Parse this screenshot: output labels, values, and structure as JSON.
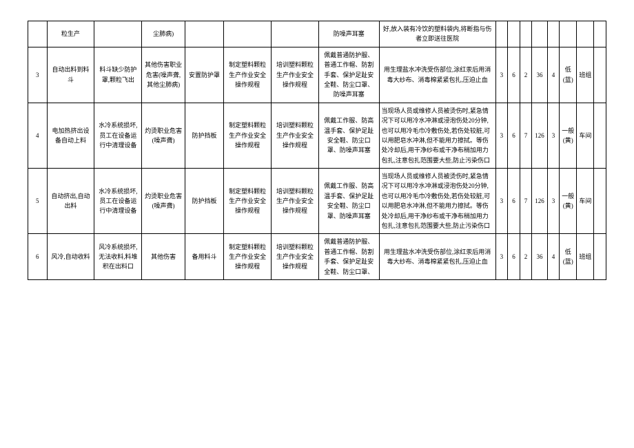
{
  "rows": [
    {
      "idx": "",
      "step": "粒生产",
      "risk": "",
      "hazard": "尘肺病)",
      "eng": "",
      "admin": "",
      "train": "",
      "ppe": "防噪声耳塞",
      "emerg": "好,放入装有冷饮的塑料袋内,将断指与伤者立即送往医院",
      "n1": "",
      "n2": "",
      "n3": "",
      "n4": "",
      "n5": "",
      "level": "",
      "mgr": "",
      "end": ""
    },
    {
      "idx": "3",
      "step": "自动出料到料斗",
      "risk": "料斗缺少防护罩,颗粒飞出",
      "hazard": "其他伤害职业危害(噪声聋,其他尘肺病)",
      "eng": "安置防护罩",
      "admin": "制定塑料颗粒生产作业安全操作规程",
      "train": "培训塑料颗粒生产作业安全操作规程",
      "ppe": "佩戴普通防护服、普通工作帽、防割手套、保护足趾安全鞋、防尘口罩、防噪声耳塞",
      "emerg": "用生理盐水冲洗受伤部位,涂红汞后用消毒大纱布、消毒棉紧紧包扎,压迫止血",
      "n1": "3",
      "n2": "6",
      "n3": "2",
      "n4": "36",
      "n5": "4",
      "level": "低(蓝)",
      "mgr": "班组",
      "end": ""
    },
    {
      "idx": "4",
      "step": "电加热挤出设备自动上料",
      "risk": "水冷系统损坏,员工在设备运行中清理设备",
      "hazard": "灼烫职业危害(噪声聋)",
      "eng": "防护挡板",
      "admin": "制定塑料颗粒生产作业安全操作规程",
      "train": "培训塑料颗粒生产作业安全操作规程",
      "ppe": "佩戴工作服、防高温手套、保护足趾安全鞋、防尘口罩、防噪声耳塞",
      "emerg": "当现场人员或维修人员被烫伤时,紧急情况下可以用冷水冲淋或浸泡伤处20分钟,也可以用冷毛巾冷敷伤处,若伤处较脏,可以用肥皂水冲淋,但不能用力擦拭。等伤处冷却后,用干净纱布或干净布稍加用力包扎,注意包扎范围要大些,防止污染伤口",
      "n1": "3",
      "n2": "6",
      "n3": "7",
      "n4": "126",
      "n5": "3",
      "level": "一般(黄)",
      "mgr": "车间",
      "end": ""
    },
    {
      "idx": "5",
      "step": "自动挤出,自动出料",
      "risk": "水冷系统损坏,员工在设备运行中清理设备",
      "hazard": "灼烫职业危害(噪声聋)",
      "eng": "防护挡板",
      "admin": "制定塑料颗粒生产作业安全操作规程",
      "train": "培训塑料颗粒生产作业安全操作规程",
      "ppe": "佩戴工作服、防高温手套、保护足趾安全鞋、防尘口罩、防噪声耳塞",
      "emerg": "当现场人员或维修人员被烫伤时,紧急情况下可以用冷水冲淋或浸泡伤处20分钟,也可以用冷毛巾冷敷伤处,若伤处较脏,可以用肥皂水冲淋,但不能用力擦拭。等伤处冷却后,用干净纱布或干净布稍加用力包扎,注意包扎范围要大些,防止污染伤口",
      "n1": "3",
      "n2": "6",
      "n3": "7",
      "n4": "126",
      "n5": "3",
      "level": "一般(黄)",
      "mgr": "车间",
      "end": ""
    },
    {
      "idx": "6",
      "step": "风冷,自动收料",
      "risk": "风冷系统损坏,无法收料,料堆积在出料口",
      "hazard": "其他伤害",
      "eng": "备用料斗",
      "admin": "制定塑料颗粒生产作业安全操作规程",
      "train": "培训塑料颗粒生产作业安全操作规程",
      "ppe": "佩戴普通防护服、普通工作帽、防割手套、保护足趾安全鞋、防尘口罩、",
      "emerg": "用生理盐水冲洗受伤部位,涂红汞后用消毒大纱布、消毒棉紧紧包扎,压迫止血",
      "n1": "3",
      "n2": "6",
      "n3": "2",
      "n4": "36",
      "n5": "4",
      "level": "低(蓝)",
      "mgr": "班组",
      "end": ""
    }
  ]
}
